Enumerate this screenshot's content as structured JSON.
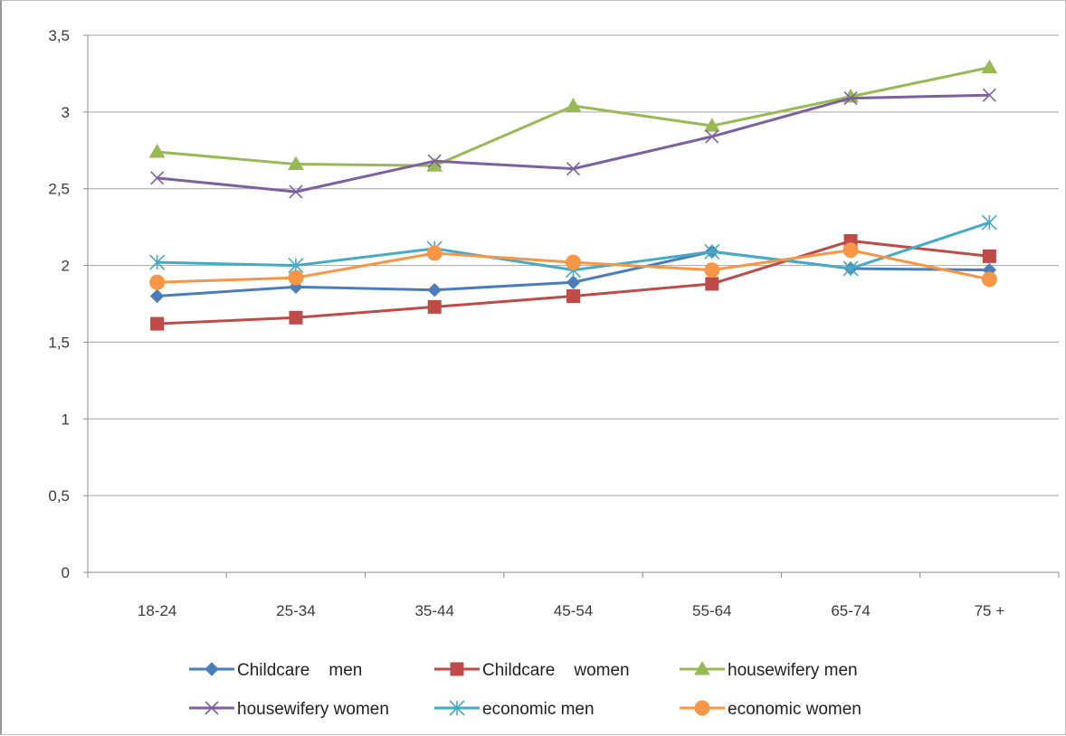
{
  "chart_data": {
    "type": "line",
    "categories": [
      "18-24",
      "25-34",
      "35-44",
      "45-54",
      "55-64",
      "65-74",
      "75 +"
    ],
    "ylim": [
      0,
      3.5
    ],
    "yticks": [
      0,
      0.5,
      1,
      1.5,
      2,
      2.5,
      3,
      3.5
    ],
    "ytick_labels": [
      "0",
      "0,5",
      "1",
      "1,5",
      "2",
      "2,5",
      "3",
      "3,5"
    ],
    "grid": true,
    "legend_position": "bottom",
    "series": [
      {
        "name": "Childcare    men",
        "color": "#4A7EBB",
        "marker": "diamond",
        "values": [
          1.8,
          1.86,
          1.84,
          1.89,
          2.09,
          1.98,
          1.97
        ]
      },
      {
        "name": "Childcare    women",
        "color": "#BE4B48",
        "marker": "square",
        "values": [
          1.62,
          1.66,
          1.73,
          1.8,
          1.88,
          2.16,
          2.06
        ]
      },
      {
        "name": "housewifery men",
        "color": "#98B954",
        "marker": "triangle",
        "values": [
          2.74,
          2.66,
          2.65,
          3.04,
          2.91,
          3.1,
          3.29
        ]
      },
      {
        "name": "housewifery women",
        "color": "#7D60A0",
        "marker": "x",
        "values": [
          2.57,
          2.48,
          2.68,
          2.63,
          2.84,
          3.09,
          3.11
        ]
      },
      {
        "name": "economic men",
        "color": "#46AAC5",
        "marker": "star",
        "values": [
          2.02,
          2.0,
          2.11,
          1.97,
          2.09,
          1.98,
          2.28
        ]
      },
      {
        "name": "economic women",
        "color": "#F79646",
        "marker": "circle",
        "values": [
          1.89,
          1.92,
          2.08,
          2.02,
          1.97,
          2.1,
          1.91
        ]
      }
    ]
  }
}
